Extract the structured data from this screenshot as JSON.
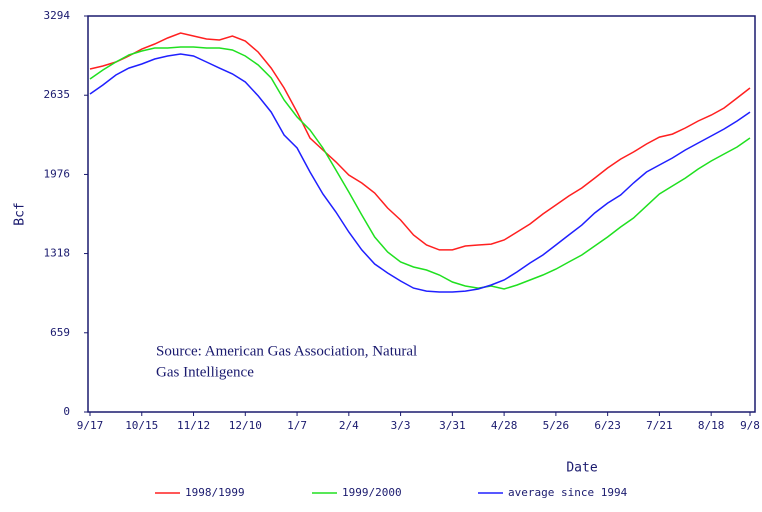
{
  "chart_data": {
    "type": "line",
    "x_label": "Date",
    "y_label": "Bcf",
    "annotation": [
      "Source: American Gas Association, Natural",
      "Gas Intelligence"
    ],
    "categories": [
      "9/17",
      null,
      null,
      null,
      "10/15",
      null,
      null,
      null,
      "11/12",
      null,
      null,
      null,
      "12/10",
      null,
      null,
      null,
      "1/7",
      null,
      null,
      null,
      "2/4",
      null,
      null,
      null,
      "3/3",
      null,
      null,
      null,
      "3/31",
      null,
      null,
      null,
      "4/28",
      null,
      null,
      null,
      "5/26",
      null,
      null,
      null,
      "6/23",
      null,
      null,
      null,
      "7/21",
      null,
      null,
      null,
      "8/18",
      null,
      null,
      "9/8"
    ],
    "ylim": [
      0,
      3294
    ],
    "yticks": [
      0,
      659,
      1318,
      1976,
      2635,
      3294
    ],
    "series": [
      {
        "name": "1998/1999",
        "color": "#ff2020",
        "values": [
          2853,
          2878,
          2911,
          2961,
          3019,
          3061,
          3111,
          3153,
          3128,
          3103,
          3094,
          3128,
          3086,
          2994,
          2861,
          2695,
          2495,
          2279,
          2179,
          2080,
          1971,
          1905,
          1822,
          1697,
          1597,
          1472,
          1389,
          1348,
          1348,
          1381,
          1389,
          1397,
          1431,
          1497,
          1564,
          1647,
          1722,
          1797,
          1863,
          1946,
          2030,
          2104,
          2163,
          2229,
          2287,
          2312,
          2362,
          2421,
          2470,
          2529,
          2612,
          2695
        ]
      },
      {
        "name": "1999/2000",
        "color": "#20e020",
        "values": [
          2770,
          2845,
          2911,
          2970,
          3003,
          3028,
          3028,
          3036,
          3036,
          3028,
          3028,
          3011,
          2961,
          2886,
          2778,
          2595,
          2454,
          2346,
          2196,
          2013,
          1830,
          1639,
          1456,
          1331,
          1248,
          1206,
          1181,
          1140,
          1081,
          1048,
          1031,
          1048,
          1023,
          1056,
          1098,
          1140,
          1189,
          1248,
          1306,
          1381,
          1456,
          1539,
          1614,
          1714,
          1813,
          1880,
          1946,
          2021,
          2088,
          2146,
          2204,
          2279
        ]
      },
      {
        "name": "average since 1994",
        "color": "#2020ff",
        "values": [
          2645,
          2720,
          2803,
          2861,
          2895,
          2936,
          2961,
          2978,
          2961,
          2911,
          2861,
          2812,
          2745,
          2629,
          2495,
          2304,
          2196,
          1996,
          1813,
          1664,
          1497,
          1348,
          1231,
          1156,
          1090,
          1031,
          1006,
          998,
          998,
          1006,
          1023,
          1056,
          1098,
          1165,
          1239,
          1306,
          1389,
          1472,
          1555,
          1655,
          1738,
          1805,
          1905,
          1996,
          2055,
          2113,
          2179,
          2238,
          2296,
          2354,
          2421,
          2495
        ]
      }
    ]
  }
}
